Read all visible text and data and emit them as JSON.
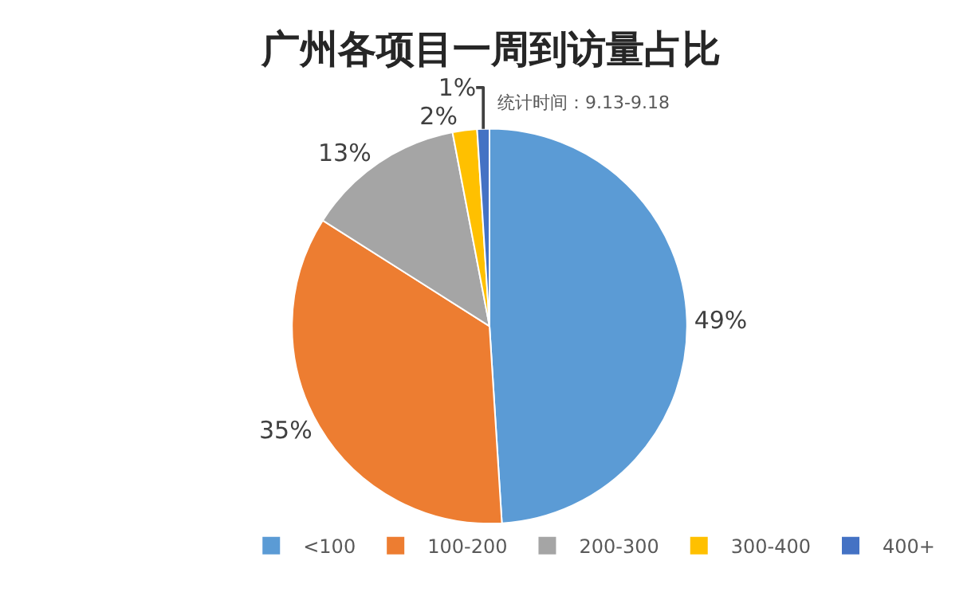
{
  "chart_data": {
    "type": "pie",
    "title": "广州各项目一周到访量占比",
    "subtitle": "统计时间：9.13-9.18",
    "categories": [
      "<100",
      "100-200",
      "200-300",
      "300-400",
      "400+"
    ],
    "values": [
      49,
      35,
      13,
      2,
      1
    ],
    "value_labels": [
      "49%",
      "35%",
      "13%",
      "2%",
      "1%"
    ],
    "colors": [
      "#5b9bd5",
      "#ed7d31",
      "#a5a5a5",
      "#ffc000",
      "#4472c4"
    ],
    "legend": "bottom right"
  }
}
